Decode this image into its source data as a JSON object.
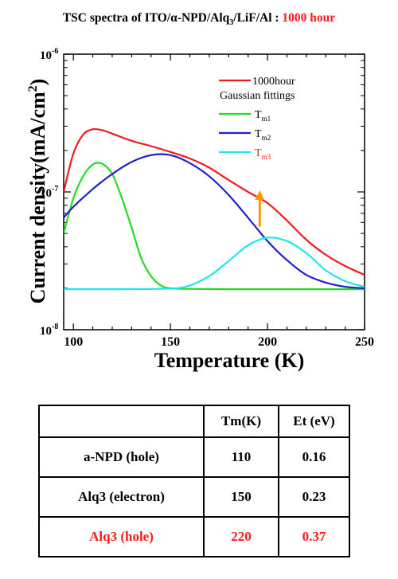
{
  "title": {
    "main": "TSC spectra of ITO/α-NPD/Alq",
    "sub": "3",
    "rest": "/LiF/Al : ",
    "highlight": "1000 hour"
  },
  "chart_data": {
    "type": "line",
    "xlabel": "Temperature (K)",
    "ylabel_main": "Current density(mA/cm",
    "ylabel_sup": "2",
    "ylabel_end": ")",
    "xlim": [
      95,
      250
    ],
    "ylim": [
      1e-08,
      1e-06
    ],
    "yscale": "log",
    "xticks": [
      100,
      150,
      200,
      250
    ],
    "yticks": [
      {
        "value": 1e-08,
        "base": "10",
        "exp": "-8"
      },
      {
        "value": 1e-07,
        "base": "10",
        "exp": "-7"
      },
      {
        "value": 1e-06,
        "base": "10",
        "exp": "-6"
      }
    ],
    "legend_header": "Gaussian fittings",
    "legend_position": "top-right",
    "series": [
      {
        "name": "1000hour",
        "color": "#ee1c1c",
        "x": [
          95,
          100,
          105,
          110,
          115,
          120,
          130,
          140,
          150,
          160,
          170,
          180,
          190,
          200,
          210,
          220,
          230,
          240,
          250
        ],
        "y": [
          1e-07,
          1.9e-07,
          2.6e-07,
          2.85e-07,
          2.8e-07,
          2.65e-07,
          2.35e-07,
          2.15e-07,
          1.95e-07,
          1.75e-07,
          1.5e-07,
          1.22e-07,
          1e-07,
          8.3e-08,
          6.2e-08,
          4.5e-08,
          3.5e-08,
          2.9e-08,
          2.5e-08
        ]
      },
      {
        "name": "Tm1",
        "name_main": "T",
        "name_sub": "m1",
        "color": "#22dd22",
        "x": [
          95,
          100,
          105,
          110,
          115,
          120,
          125,
          130,
          135,
          140,
          145,
          150,
          160,
          180,
          200,
          250
        ],
        "y": [
          5e-08,
          9e-08,
          1.3e-07,
          1.58e-07,
          1.6e-07,
          1.35e-07,
          9e-08,
          5.5e-08,
          3.3e-08,
          2.45e-08,
          2.1e-08,
          2e-08,
          1.98e-08,
          1.97e-08,
          1.97e-08,
          1.97e-08
        ]
      },
      {
        "name": "Tm2",
        "name_main": "T",
        "name_sub": "m2",
        "color": "#2020cc",
        "x": [
          95,
          100,
          110,
          120,
          130,
          140,
          150,
          160,
          170,
          180,
          190,
          200,
          210,
          220,
          230,
          240,
          250
        ],
        "y": [
          6.5e-08,
          7.8e-08,
          1.05e-07,
          1.35e-07,
          1.65e-07,
          1.85e-07,
          1.85e-07,
          1.62e-07,
          1.3e-07,
          9.5e-08,
          6.5e-08,
          4.4e-08,
          3.2e-08,
          2.5e-08,
          2.2e-08,
          2.05e-08,
          2e-08
        ]
      },
      {
        "name": "Tm3",
        "name_main": "T",
        "name_sub": "m3",
        "color": "#22e6ee",
        "label_color": "#ee1c1c",
        "x": [
          95,
          120,
          150,
          160,
          170,
          180,
          190,
          200,
          210,
          220,
          230,
          240,
          250
        ],
        "y": [
          1.97e-08,
          1.97e-08,
          1.99e-08,
          2.1e-08,
          2.45e-08,
          3.15e-08,
          4.1e-08,
          4.65e-08,
          4.4e-08,
          3.6e-08,
          2.7e-08,
          2.25e-08,
          2.05e-08
        ]
      }
    ],
    "annotation_arrow": {
      "x": 196,
      "y_from": 5.6e-08,
      "y_to": 1e-07,
      "color": "#ff9900"
    }
  },
  "table": {
    "headers": [
      "",
      "Tm(K)",
      "Et (eV)"
    ],
    "rows": [
      {
        "label": "a-NPD (hole)",
        "tm": "110",
        "et": "0.16"
      },
      {
        "label": "Alq3 (electron)",
        "tm": "150",
        "et": "0.23"
      },
      {
        "label": "Alq3 (hole)",
        "tm": "220",
        "et": "0.37"
      }
    ]
  }
}
